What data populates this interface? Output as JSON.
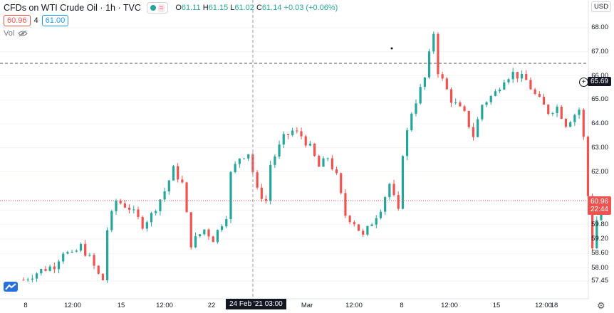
{
  "header": {
    "symbol_title": "CFDs on WTI Crude Oil · 1h · TVC",
    "ohlc": {
      "open_label": "O",
      "open": "61.11",
      "high_label": "H",
      "high": "61.15",
      "low_label": "L",
      "low": "61.02",
      "close_label": "C",
      "close": "61.14",
      "change": "+0.03 (+0.06%)"
    },
    "wave_glyph": "≈"
  },
  "order": {
    "sell_price": "60.96",
    "spread": "4",
    "buy_price": "61.00"
  },
  "volume_label": "Vol",
  "currency": "USD",
  "y_axis_labels": [
    "68.00",
    "67.00",
    "66.00",
    "65.00",
    "64.00",
    "63.00",
    "62.00",
    "60.40",
    "59.80",
    "59.20",
    "58.60",
    "58.00",
    "57.45"
  ],
  "x_axis_labels": [
    "8",
    "12:00",
    "15",
    "12:00",
    "22",
    "Mar",
    "12:00",
    "8",
    "12:00",
    "15",
    "12:00",
    "18"
  ],
  "crosshair_price": "65.69",
  "last_price": "60.96",
  "countdown": "22:44",
  "crosshair_time": "24 Feb '21   03:00",
  "colors": {
    "up": "#26a69a",
    "down": "#ef5350",
    "crosshair": "#9598a1"
  },
  "icons": {
    "eye": "eye-icon",
    "settings": "gear-icon",
    "logo": "tradingview-logo-icon",
    "add": "plus-circle-icon"
  },
  "chart_data": {
    "type": "candlestick",
    "title": "CFDs on WTI Crude Oil · 1h · TVC",
    "ylim": [
      57.45,
      68.2
    ],
    "price_path": [
      [
        0,
        57.5
      ],
      [
        4,
        57.9
      ],
      [
        7,
        58.1
      ],
      [
        9,
        58.7
      ],
      [
        11,
        58.5
      ],
      [
        13,
        58.9
      ],
      [
        15,
        58.4
      ],
      [
        17,
        57.7
      ],
      [
        18,
        57.5
      ],
      [
        19,
        59.6
      ],
      [
        21,
        60.8
      ],
      [
        24,
        60.5
      ],
      [
        27,
        59.8
      ],
      [
        29,
        60.2
      ],
      [
        32,
        61.2
      ],
      [
        34,
        62.1
      ],
      [
        36,
        61.5
      ],
      [
        37,
        60.2
      ],
      [
        38,
        59.0
      ],
      [
        41,
        59.6
      ],
      [
        43,
        59.2
      ],
      [
        46,
        60.2
      ],
      [
        47,
        61.9
      ],
      [
        49,
        62.6
      ],
      [
        51,
        62.8
      ],
      [
        53,
        61.2
      ],
      [
        55,
        60.8
      ],
      [
        56,
        62.3
      ],
      [
        59,
        63.4
      ],
      [
        61,
        63.7
      ],
      [
        63,
        63.5
      ],
      [
        65,
        63.0
      ],
      [
        67,
        62.2
      ],
      [
        69,
        62.6
      ],
      [
        71,
        61.8
      ],
      [
        73,
        60.2
      ],
      [
        75,
        59.9
      ],
      [
        77,
        59.3
      ],
      [
        79,
        59.9
      ],
      [
        81,
        60.5
      ],
      [
        83,
        61.5
      ],
      [
        85,
        60.3
      ],
      [
        86,
        62.8
      ],
      [
        88,
        64.5
      ],
      [
        91,
        65.9
      ],
      [
        93,
        67.8
      ],
      [
        94,
        66.2
      ],
      [
        97,
        65.0
      ],
      [
        100,
        64.4
      ],
      [
        102,
        63.5
      ],
      [
        104,
        64.8
      ],
      [
        107,
        65.3
      ],
      [
        109,
        65.9
      ],
      [
        111,
        66.1
      ],
      [
        114,
        65.8
      ],
      [
        116,
        65.2
      ],
      [
        119,
        64.5
      ],
      [
        121,
        64.7
      ],
      [
        123,
        64.0
      ],
      [
        126,
        64.6
      ],
      [
        127,
        63.4
      ],
      [
        128,
        61.0
      ],
      [
        129,
        58.9
      ],
      [
        130,
        60.0
      ],
      [
        131,
        60.9
      ]
    ]
  }
}
